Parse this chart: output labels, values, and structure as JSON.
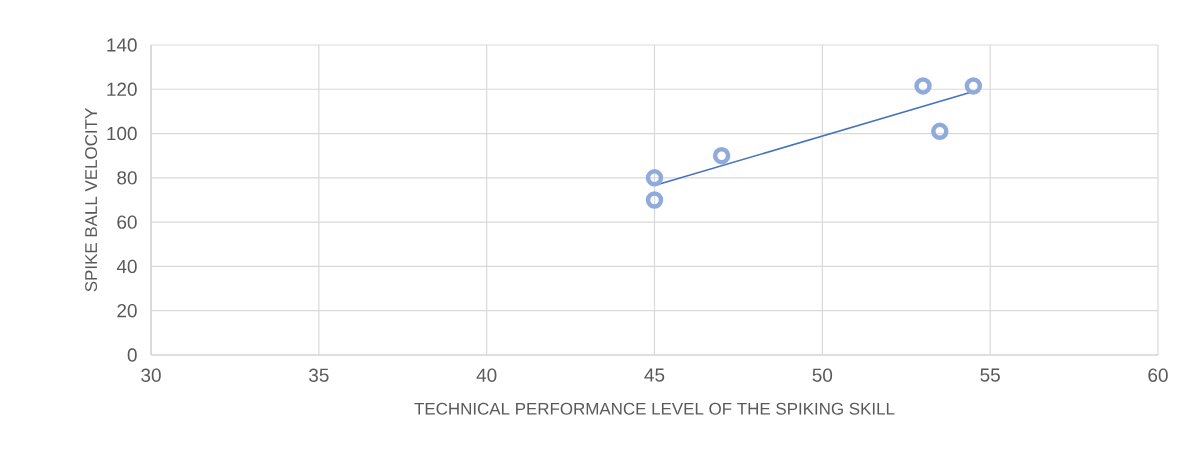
{
  "chart_data": {
    "type": "scatter",
    "xlabel": "TECHNICAL PERFORMANCE LEVEL OF THE SPIKING SKILL",
    "ylabel": "SPIKE BALL VELOCITY",
    "xlim": [
      30,
      60
    ],
    "ylim": [
      0,
      140
    ],
    "xticks": [
      30,
      35,
      40,
      45,
      50,
      55,
      60
    ],
    "yticks": [
      0,
      20,
      40,
      60,
      80,
      100,
      120,
      140
    ],
    "grid": true,
    "marker": "circle",
    "series": [
      {
        "color": "#8faadc",
        "x": [
          45,
          45,
          47,
          53,
          53.5,
          54.5
        ],
        "values": [
          80,
          70,
          90,
          121.5,
          101,
          121.5
        ]
      },
      {
        "type": "line",
        "marker": "none",
        "color": "#4472c4",
        "x": [
          45,
          54.5
        ],
        "values": [
          76.5,
          119
        ]
      }
    ]
  }
}
